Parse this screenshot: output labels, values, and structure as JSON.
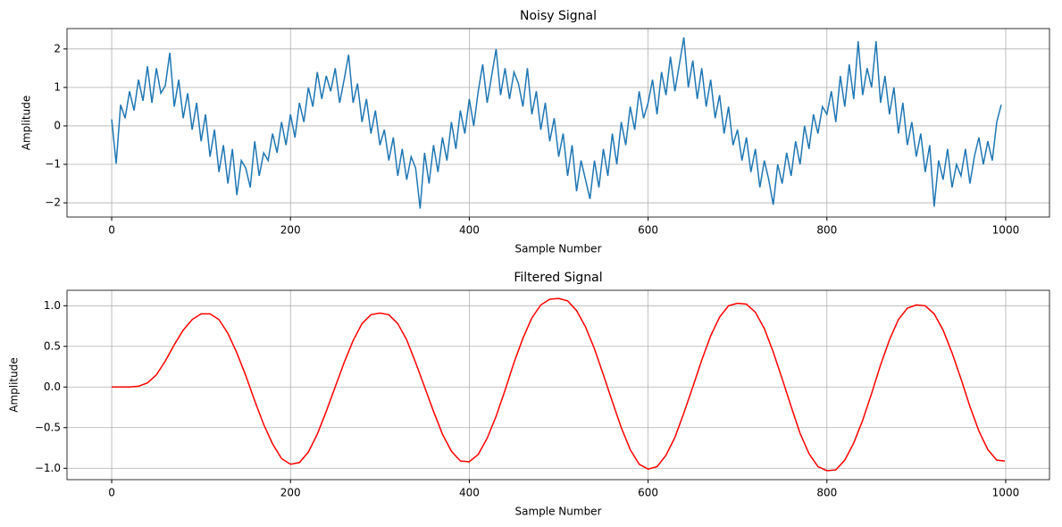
{
  "chart_data": [
    {
      "type": "line",
      "title": "Noisy Signal",
      "xlabel": "Sample Number",
      "ylabel": "Amplitude",
      "grid": true,
      "xlim": [
        -50,
        1049
      ],
      "xticks": [
        0,
        200,
        400,
        600,
        800,
        1000
      ],
      "ylim": [
        -2.37,
        2.53
      ],
      "yticks": [
        {
          "value": -2,
          "label": "−2"
        },
        {
          "value": -1,
          "label": "−1"
        },
        0,
        1,
        2
      ],
      "x": [
        0,
        5,
        10,
        15,
        20,
        25,
        30,
        35,
        40,
        45,
        50,
        55,
        60,
        65,
        70,
        75,
        80,
        85,
        90,
        95,
        100,
        105,
        110,
        115,
        120,
        125,
        130,
        135,
        140,
        145,
        150,
        155,
        160,
        165,
        170,
        175,
        180,
        185,
        190,
        195,
        200,
        205,
        210,
        215,
        220,
        225,
        230,
        235,
        240,
        245,
        250,
        255,
        260,
        265,
        270,
        275,
        280,
        285,
        290,
        295,
        300,
        305,
        310,
        315,
        320,
        325,
        330,
        335,
        340,
        345,
        350,
        355,
        360,
        365,
        370,
        375,
        380,
        385,
        390,
        395,
        400,
        405,
        410,
        415,
        420,
        425,
        430,
        435,
        440,
        445,
        450,
        455,
        460,
        465,
        470,
        475,
        480,
        485,
        490,
        495,
        500,
        505,
        510,
        515,
        520,
        525,
        530,
        535,
        540,
        545,
        550,
        555,
        560,
        565,
        570,
        575,
        580,
        585,
        590,
        595,
        600,
        605,
        610,
        615,
        620,
        625,
        630,
        635,
        640,
        645,
        650,
        655,
        660,
        665,
        670,
        675,
        680,
        685,
        690,
        695,
        700,
        705,
        710,
        715,
        720,
        725,
        730,
        735,
        740,
        745,
        750,
        755,
        760,
        765,
        770,
        775,
        780,
        785,
        790,
        795,
        800,
        805,
        810,
        815,
        820,
        825,
        830,
        835,
        840,
        845,
        850,
        855,
        860,
        865,
        870,
        875,
        880,
        885,
        890,
        895,
        900,
        905,
        910,
        915,
        920,
        925,
        930,
        935,
        940,
        945,
        950,
        955,
        960,
        965,
        970,
        975,
        980,
        985,
        990,
        995
      ],
      "series": [
        {
          "color": "#1f77b4",
          "values": [
            0.17,
            -0.98,
            0.55,
            0.2,
            0.9,
            0.4,
            1.2,
            0.65,
            1.55,
            0.6,
            1.5,
            0.85,
            1.05,
            1.9,
            0.5,
            1.2,
            0.2,
            0.85,
            -0.1,
            0.6,
            -0.4,
            0.3,
            -0.8,
            -0.1,
            -1.2,
            -0.5,
            -1.5,
            -0.6,
            -1.8,
            -0.9,
            -1.1,
            -1.6,
            -0.4,
            -1.3,
            -0.7,
            -0.9,
            -0.2,
            -0.7,
            0.1,
            -0.5,
            0.3,
            -0.3,
            0.6,
            0.1,
            1.0,
            0.5,
            1.4,
            0.7,
            1.3,
            0.9,
            1.5,
            0.6,
            1.2,
            1.85,
            0.6,
            1.1,
            0.1,
            0.7,
            -0.2,
            0.4,
            -0.5,
            -0.1,
            -0.9,
            -0.3,
            -1.3,
            -0.6,
            -1.4,
            -0.8,
            -1.1,
            -2.15,
            -0.7,
            -1.5,
            -0.5,
            -1.2,
            -0.3,
            -0.9,
            0.1,
            -0.6,
            0.4,
            -0.2,
            0.7,
            0.0,
            0.9,
            1.6,
            0.6,
            1.3,
            2.0,
            0.8,
            1.5,
            0.7,
            1.4,
            1.1,
            0.5,
            1.5,
            0.3,
            0.9,
            -0.1,
            0.6,
            -0.4,
            0.2,
            -0.8,
            -0.2,
            -1.3,
            -0.5,
            -1.7,
            -0.9,
            -1.4,
            -1.9,
            -0.9,
            -1.6,
            -0.6,
            -1.3,
            -0.2,
            -1.0,
            0.1,
            -0.5,
            0.5,
            -0.1,
            0.9,
            0.2,
            0.6,
            1.2,
            0.3,
            1.4,
            0.8,
            1.8,
            0.9,
            1.6,
            2.3,
            1.0,
            1.7,
            0.7,
            1.5,
            0.5,
            1.2,
            0.2,
            0.8,
            -0.2,
            0.5,
            -0.5,
            -0.1,
            -0.9,
            -0.3,
            -1.2,
            -0.6,
            -1.6,
            -0.9,
            -1.4,
            -2.05,
            -1.0,
            -1.5,
            -0.7,
            -1.3,
            -0.4,
            -1.0,
            0.0,
            -0.6,
            0.3,
            -0.2,
            0.5,
            0.3,
            0.9,
            0.1,
            1.3,
            0.5,
            1.6,
            0.7,
            2.2,
            0.8,
            1.5,
            1.0,
            2.2,
            0.6,
            1.3,
            0.3,
            1.0,
            -0.2,
            0.6,
            -0.5,
            0.1,
            -0.8,
            -0.2,
            -1.2,
            -0.5,
            -2.1,
            -0.9,
            -1.4,
            -0.6,
            -1.6,
            -1.0,
            -1.3,
            -0.6,
            -1.5,
            -0.8,
            -0.3,
            -1.0,
            -0.4,
            -0.9,
            0.1,
            0.55
          ]
        }
      ]
    },
    {
      "type": "line",
      "title": "Filtered Signal",
      "xlabel": "Sample Number",
      "ylabel": "Amplitude",
      "grid": true,
      "xlim": [
        -50,
        1049
      ],
      "xticks": [
        0,
        200,
        400,
        600,
        800,
        1000
      ],
      "ylim": [
        -1.14,
        1.19
      ],
      "yticks": [
        {
          "value": -1.0,
          "label": "−1.0"
        },
        {
          "value": -0.5,
          "label": "−0.5"
        },
        {
          "value": 0,
          "label": "0.0"
        },
        0.5,
        {
          "value": 1,
          "label": "1.0"
        }
      ],
      "x": [
        0,
        10,
        20,
        30,
        40,
        50,
        60,
        70,
        80,
        90,
        100,
        110,
        120,
        130,
        140,
        150,
        160,
        170,
        180,
        190,
        200,
        210,
        220,
        230,
        240,
        250,
        260,
        270,
        280,
        290,
        300,
        310,
        320,
        330,
        340,
        350,
        360,
        370,
        380,
        390,
        400,
        410,
        420,
        430,
        440,
        450,
        460,
        470,
        480,
        490,
        500,
        510,
        520,
        530,
        540,
        550,
        560,
        570,
        580,
        590,
        600,
        610,
        620,
        630,
        640,
        650,
        660,
        670,
        680,
        690,
        700,
        710,
        720,
        730,
        740,
        750,
        760,
        770,
        780,
        790,
        800,
        810,
        820,
        830,
        840,
        850,
        860,
        870,
        880,
        890,
        900,
        910,
        920,
        930,
        940,
        950,
        960,
        970,
        980,
        990,
        999
      ],
      "series": [
        {
          "color": "#ff0000",
          "values": [
            0,
            0,
            0,
            0.01,
            0.05,
            0.15,
            0.32,
            0.52,
            0.7,
            0.83,
            0.9,
            0.9,
            0.83,
            0.66,
            0.42,
            0.14,
            -0.17,
            -0.46,
            -0.7,
            -0.88,
            -0.95,
            -0.93,
            -0.8,
            -0.58,
            -0.3,
            0.0,
            0.3,
            0.57,
            0.78,
            0.89,
            0.91,
            0.89,
            0.78,
            0.58,
            0.3,
            0.0,
            -0.3,
            -0.58,
            -0.79,
            -0.91,
            -0.92,
            -0.83,
            -0.63,
            -0.36,
            -0.04,
            0.3,
            0.6,
            0.85,
            1.01,
            1.08,
            1.09,
            1.06,
            0.94,
            0.74,
            0.47,
            0.15,
            -0.18,
            -0.5,
            -0.77,
            -0.95,
            -1.01,
            -0.98,
            -0.84,
            -0.62,
            -0.32,
            0.0,
            0.33,
            0.63,
            0.86,
            1.0,
            1.03,
            1.02,
            0.92,
            0.72,
            0.43,
            0.1,
            -0.24,
            -0.57,
            -0.82,
            -0.98,
            -1.03,
            -1.02,
            -0.9,
            -0.69,
            -0.41,
            -0.08,
            0.27,
            0.58,
            0.83,
            0.97,
            1.01,
            1.0,
            0.9,
            0.7,
            0.42,
            0.1,
            -0.24,
            -0.54,
            -0.77,
            -0.9,
            -0.91
          ]
        }
      ]
    }
  ]
}
